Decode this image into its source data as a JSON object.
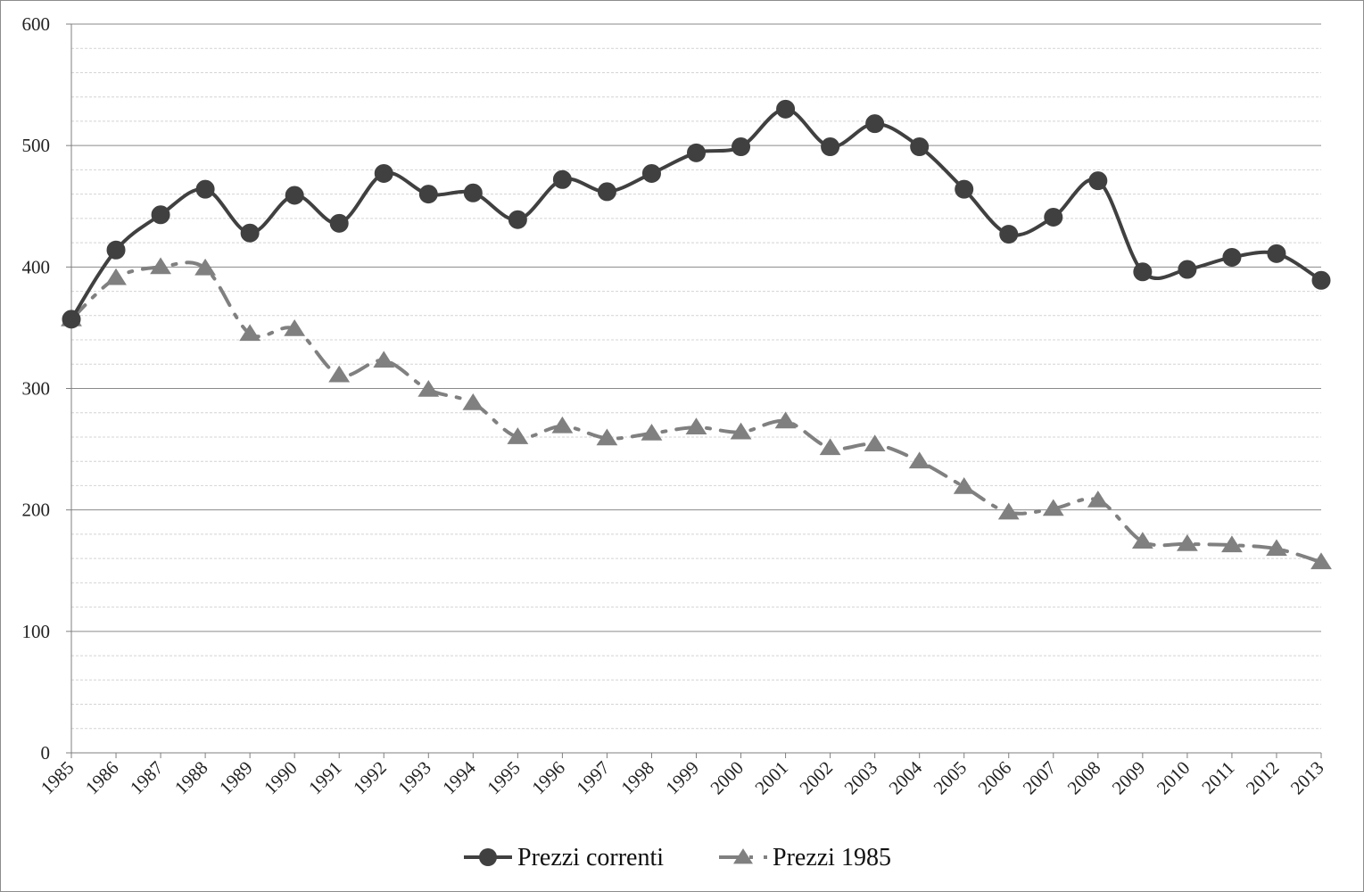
{
  "chart_data": {
    "type": "line",
    "title": "",
    "xlabel": "",
    "ylabel": "",
    "ylim": [
      0,
      600
    ],
    "yticks": [
      0,
      100,
      200,
      300,
      400,
      500,
      600
    ],
    "grid": true,
    "legend_position": "bottom",
    "categories": [
      "1985",
      "1986",
      "1987",
      "1988",
      "1989",
      "1990",
      "1991",
      "1992",
      "1993",
      "1994",
      "1995",
      "1996",
      "1997",
      "1998",
      "1999",
      "2000",
      "2001",
      "2002",
      "2003",
      "2004",
      "2005",
      "2006",
      "2007",
      "2008",
      "2009",
      "2010",
      "2011",
      "2012",
      "2013"
    ],
    "series": [
      {
        "name": "Prezzi correnti",
        "color": "#404040",
        "marker": "circle",
        "line_style": "solid",
        "smooth": true,
        "values": [
          357,
          414,
          443,
          464,
          428,
          459,
          436,
          477,
          460,
          461,
          439,
          472,
          462,
          477,
          494,
          499,
          530,
          499,
          518,
          499,
          464,
          427,
          441,
          471,
          396,
          398,
          408,
          411,
          389
        ]
      },
      {
        "name": "Prezzi 1985",
        "color": "#808080",
        "marker": "triangle",
        "line_style": "dash-dot",
        "smooth": true,
        "values": [
          357,
          391,
          400,
          399,
          345,
          349,
          311,
          323,
          299,
          288,
          260,
          269,
          259,
          263,
          268,
          264,
          273,
          251,
          254,
          240,
          219,
          198,
          201,
          208,
          174,
          172,
          171,
          168,
          157
        ]
      }
    ]
  }
}
